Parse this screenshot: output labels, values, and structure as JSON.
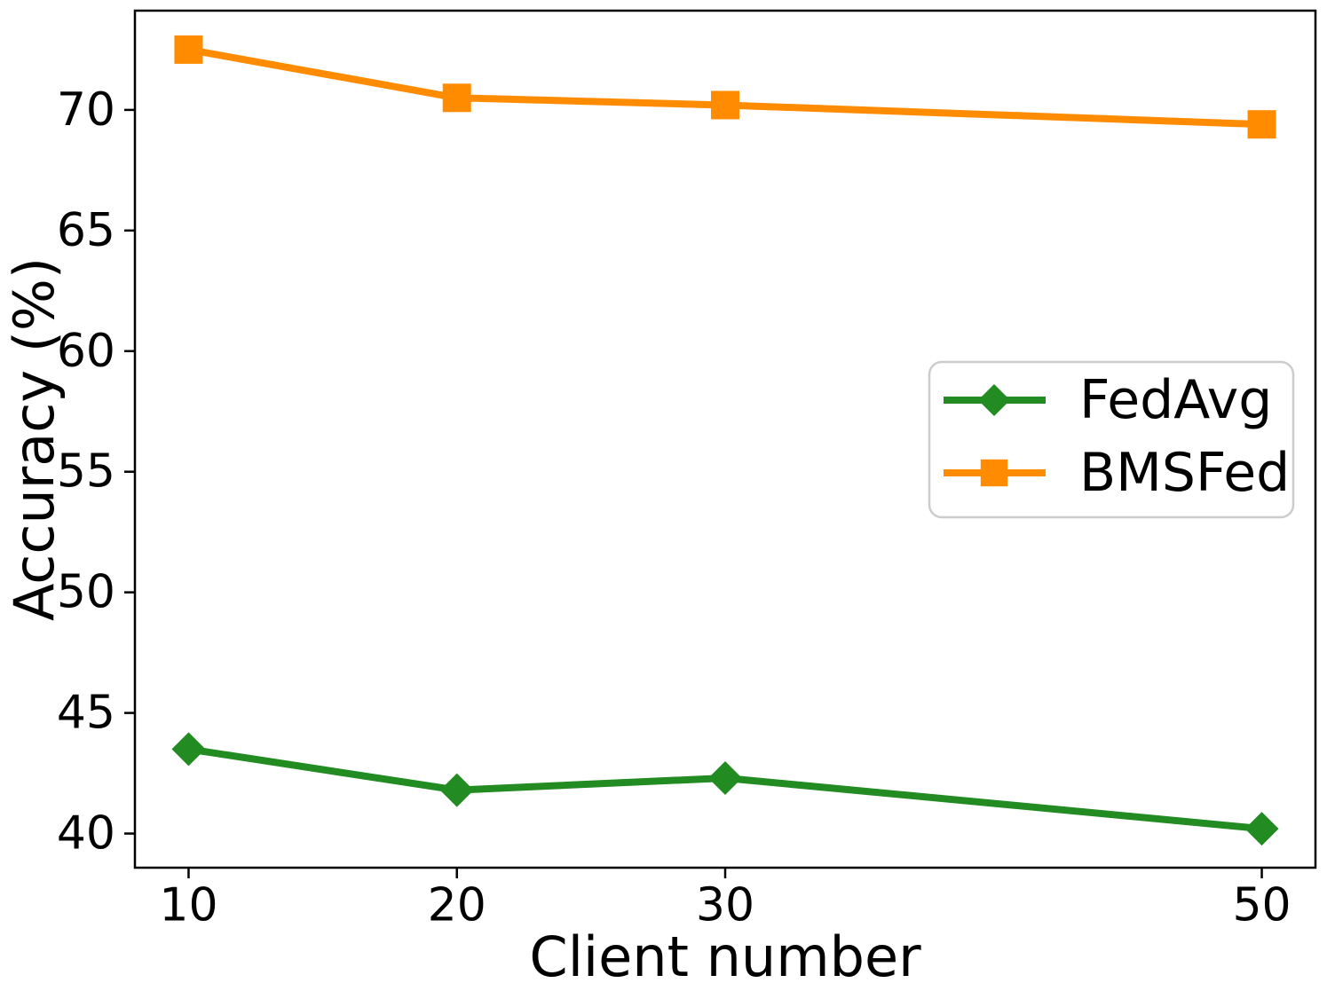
{
  "figure": {
    "background": "#ffffff",
    "text_color": "#000000",
    "axis_color": "#000000"
  },
  "chart_data": {
    "type": "line",
    "title": "",
    "xlabel": "Client number",
    "ylabel": "Accuracy (%)",
    "x": [
      10,
      20,
      30,
      50
    ],
    "xticks": [
      "10",
      "20",
      "30",
      "50"
    ],
    "yticks": [
      "40",
      "45",
      "50",
      "55",
      "60",
      "65",
      "70"
    ],
    "ytick_values": [
      40,
      45,
      50,
      55,
      60,
      65,
      70
    ],
    "xlim": [
      8,
      52
    ],
    "ylim": [
      38.585,
      74.115
    ],
    "grid": false,
    "legend": {
      "position": "center-right",
      "border_color": "#cccccc",
      "background": "#ffffff"
    },
    "series": [
      {
        "name": "FedAvg",
        "color": "#228B22",
        "marker": "diamond",
        "values": [
          43.5,
          41.8,
          42.3,
          40.2
        ]
      },
      {
        "name": "BMSFed",
        "color": "#FF8C00",
        "marker": "square",
        "values": [
          72.5,
          70.5,
          70.2,
          69.4
        ]
      }
    ]
  }
}
